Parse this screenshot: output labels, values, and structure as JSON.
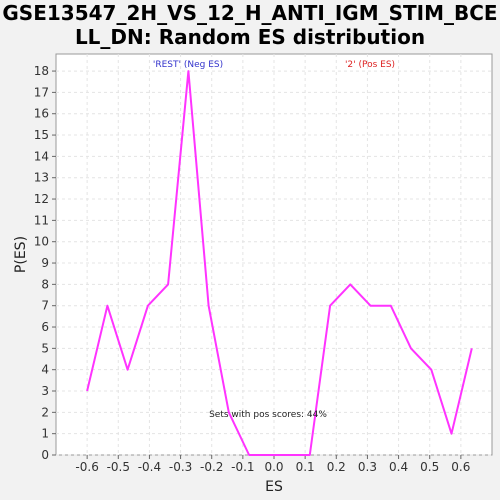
{
  "chart_data": {
    "type": "line",
    "title_line1": "GSE13547_2H_VS_12_H_ANTI_IGM_STIM_BCE",
    "title_line2": "LL_DN: Random ES distribution",
    "xlabel": "ES",
    "ylabel": "P(ES)",
    "xlim": [
      -0.7,
      0.7
    ],
    "ylim": [
      0,
      18.8
    ],
    "x_ticks": [
      "-0.6",
      "-0.5",
      "-0.4",
      "-0.3",
      "-0.2",
      "-0.1",
      "0.0",
      "0.1",
      "0.2",
      "0.3",
      "0.4",
      "0.5",
      "0.6"
    ],
    "y_ticks": [
      "0",
      "1",
      "2",
      "3",
      "4",
      "5",
      "6",
      "7",
      "8",
      "9",
      "10",
      "11",
      "12",
      "13",
      "14",
      "15",
      "16",
      "17",
      "18"
    ],
    "grid": true,
    "series": [
      {
        "color": "#ff33ff",
        "x": [
          -0.6,
          -0.535,
          -0.47,
          -0.405,
          -0.34,
          -0.275,
          -0.21,
          -0.145,
          -0.08,
          -0.015,
          0.05,
          0.115,
          0.18,
          0.245,
          0.31,
          0.375,
          0.44,
          0.505,
          0.57,
          0.635
        ],
        "y": [
          3,
          7,
          4,
          7,
          8,
          18,
          7,
          2,
          0,
          0,
          0,
          0,
          7,
          8,
          7,
          7,
          5,
          4,
          1,
          5
        ]
      }
    ],
    "annotations": {
      "neg_label": "'REST' (Neg ES)",
      "neg_color": "#3333cc",
      "pos_label": "'2' (Pos ES)",
      "pos_color": "#dd2222",
      "note": "Sets with pos scores: 44%"
    }
  }
}
